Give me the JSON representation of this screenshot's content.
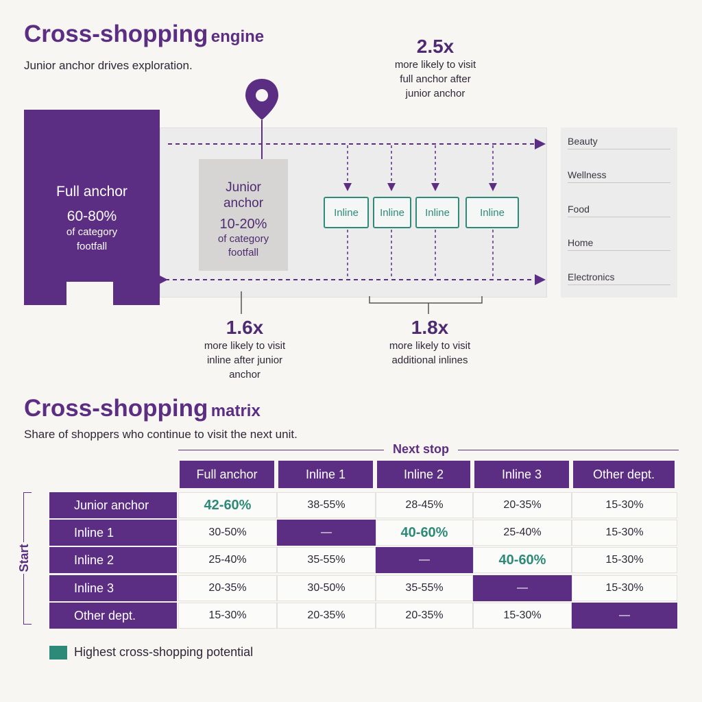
{
  "engine": {
    "title_main": "Cross-shopping",
    "title_suffix": "engine",
    "subtitle": "Junior anchor drives exploration.",
    "full_anchor": {
      "label": "Full anchor",
      "pct": "60-80%",
      "desc_line1": "of category",
      "desc_line2": "footfall"
    },
    "junior_anchor": {
      "label_line1": "Junior",
      "label_line2": "anchor",
      "pct": "10-20%",
      "desc_line1": "of category",
      "desc_line2": "footfall"
    },
    "inlines": [
      "Inline",
      "Inline",
      "Inline",
      "Inline"
    ],
    "departments": [
      "Beauty",
      "Wellness",
      "Food",
      "Home",
      "Electronics"
    ],
    "stats": {
      "full_after_junior": {
        "value": "2.5x",
        "lines": [
          "more likely to visit",
          "full anchor after",
          "junior anchor"
        ]
      },
      "inline_after_junior": {
        "value": "1.6x",
        "lines": [
          "more likely to visit",
          "inline after junior",
          "anchor"
        ]
      },
      "additional_inlines": {
        "value": "1.8x",
        "lines": [
          "more likely to visit",
          "additional inlines"
        ]
      }
    }
  },
  "matrix": {
    "title_main": "Cross-shopping",
    "title_suffix": "matrix",
    "subtitle": "Share of shoppers who continue to visit the next unit.",
    "col_axis_label": "Next stop",
    "row_axis_label": "Start",
    "columns": [
      "Full anchor",
      "Inline 1",
      "Inline 2",
      "Inline 3",
      "Other dept."
    ],
    "rows": [
      {
        "label": "Junior anchor",
        "cells": [
          "42-60%",
          "38-55%",
          "28-45%",
          "20-35%",
          "15-30%"
        ]
      },
      {
        "label": "Inline 1",
        "cells": [
          "30-50%",
          "—",
          "40-60%",
          "25-40%",
          "15-30%"
        ]
      },
      {
        "label": "Inline 2",
        "cells": [
          "25-40%",
          "35-55%",
          "—",
          "40-60%",
          "15-30%"
        ]
      },
      {
        "label": "Inline 3",
        "cells": [
          "20-35%",
          "30-50%",
          "35-55%",
          "—",
          "15-30%"
        ]
      },
      {
        "label": "Other dept.",
        "cells": [
          "15-30%",
          "20-35%",
          "20-35%",
          "15-30%",
          "—"
        ]
      }
    ],
    "diagonal_cells": [
      [
        1,
        1
      ],
      [
        2,
        2
      ],
      [
        3,
        3
      ],
      [
        4,
        4
      ]
    ],
    "highlight_cells": [
      [
        0,
        0
      ],
      [
        1,
        2
      ],
      [
        2,
        3
      ]
    ],
    "legend_label": "Highest cross-shopping potential",
    "colors": {
      "purple": "#5b2d83",
      "teal": "#2e8a78"
    }
  }
}
